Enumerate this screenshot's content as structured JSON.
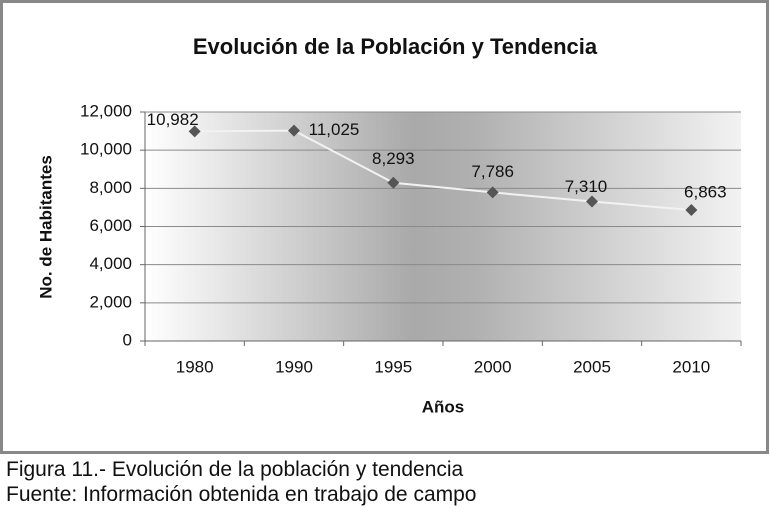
{
  "chart_data": {
    "type": "line",
    "title": "Evolución de la Población y Tendencia",
    "xlabel": "Años",
    "ylabel": "No. de Habitantes",
    "categories": [
      "1980",
      "1990",
      "1995",
      "2000",
      "2005",
      "2010"
    ],
    "series": [
      {
        "name": "Población",
        "color": "#555555",
        "line_color": "#f2f2f2",
        "values": [
          10982,
          11025,
          8293,
          7786,
          7310,
          6863
        ],
        "value_labels": [
          "10,982",
          "11,025",
          "8,293",
          "7,786",
          "7,310",
          "6,863"
        ]
      }
    ],
    "ylim": [
      0,
      12000
    ],
    "yticks": [
      0,
      {
        "value": 2000,
        "label": "2,000"
      },
      {
        "value": 4000,
        "label": "4,000"
      },
      {
        "value": 6000,
        "label": "6,000"
      },
      {
        "value": 8000,
        "label": "8,000"
      },
      {
        "value": 10000,
        "label": "10,000"
      },
      {
        "value": 12000,
        "label": "12,000"
      }
    ],
    "grid": true
  },
  "caption": [
    "Figura 11.- Evolución de la población y tendencia",
    "Fuente: Información obtenida en trabajo de campo"
  ]
}
